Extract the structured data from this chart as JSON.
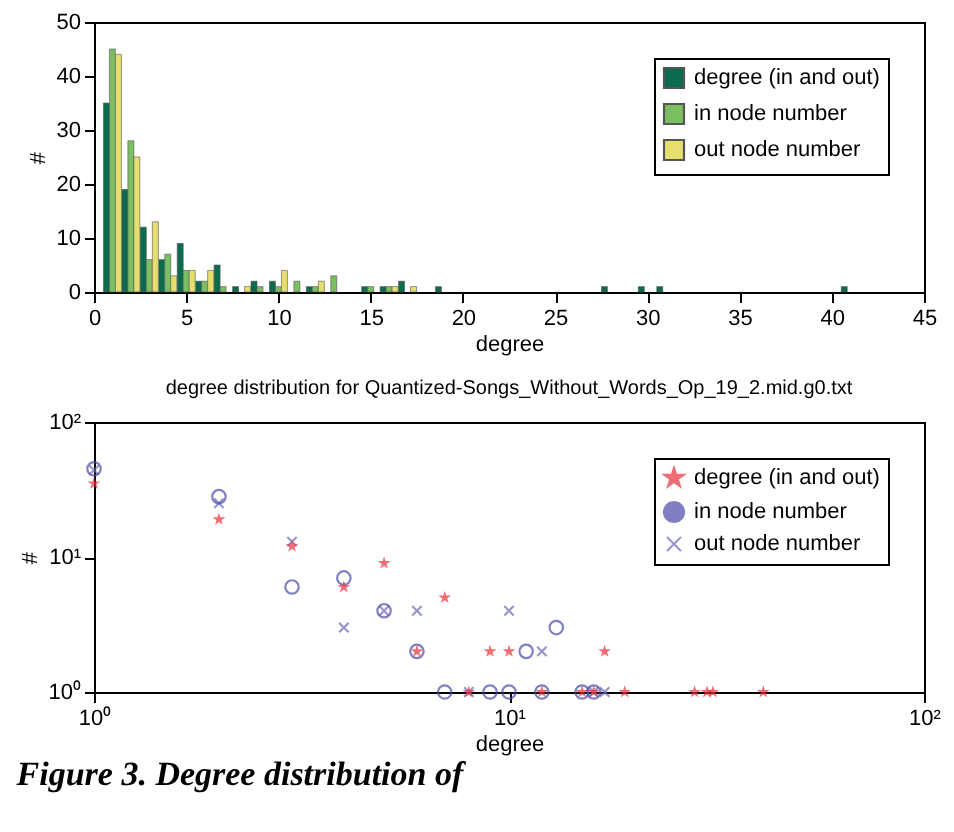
{
  "chart_data": [
    {
      "type": "bar",
      "xlabel": "degree",
      "ylabel": "#",
      "xlim": [
        0,
        45
      ],
      "xticks": [
        0,
        5,
        10,
        15,
        20,
        25,
        30,
        35,
        40,
        45
      ],
      "ylim": [
        0,
        50
      ],
      "yticks": [
        0,
        10,
        20,
        30,
        40,
        50
      ],
      "grid": false,
      "legend": "top right",
      "series": [
        {
          "name": "degree (in and out)",
          "color": "#0b6b4f",
          "x": [
            1,
            2,
            3,
            4,
            5,
            6,
            7,
            8,
            9,
            10,
            12,
            15,
            16,
            17,
            19,
            28,
            30,
            31,
            41
          ],
          "values": [
            35,
            19,
            12,
            6,
            9,
            2,
            5,
            1,
            2,
            2,
            1,
            1,
            1,
            2,
            1,
            1,
            1,
            1,
            1
          ]
        },
        {
          "name": "in node number",
          "color": "#7cbf63",
          "x": [
            1,
            2,
            3,
            4,
            5,
            6,
            7,
            9,
            10,
            11,
            12,
            13,
            15,
            16
          ],
          "values": [
            45,
            28,
            6,
            7,
            4,
            2,
            1,
            1,
            1,
            2,
            1,
            3,
            1,
            1
          ]
        },
        {
          "name": "out node number",
          "color": "#e6df6e",
          "x": [
            1,
            2,
            3,
            4,
            5,
            6,
            8,
            10,
            12,
            16,
            17
          ],
          "values": [
            44,
            25,
            13,
            3,
            4,
            4,
            1,
            4,
            2,
            1,
            1
          ]
        }
      ]
    },
    {
      "type": "scatter",
      "title": "degree distribution for Quantized-Songs_Without_Words_Op_19_2.mid.g0.txt",
      "xlabel": "degree",
      "ylabel": "#",
      "log": "xy",
      "xlim": [
        1,
        100
      ],
      "ylim": [
        1,
        100
      ],
      "xticks": [
        {
          "value": 1,
          "label": "10⁰"
        },
        {
          "value": 10,
          "label": "10¹"
        },
        {
          "value": 100,
          "label": "10²"
        }
      ],
      "yticks": [
        {
          "value": 1,
          "label": "10⁰"
        },
        {
          "value": 10,
          "label": "10¹"
        },
        {
          "value": 100,
          "label": "10²"
        }
      ],
      "grid": false,
      "legend": "top right",
      "annotations": [
        "Figure 3. Degree distribution of"
      ],
      "series": [
        {
          "name": "degree (in and out)",
          "color": "#e8303a",
          "marker": "star",
          "x": [
            1,
            2,
            3,
            4,
            5,
            6,
            7,
            8,
            9,
            10,
            12,
            15,
            16,
            17,
            19,
            28,
            30,
            31,
            41
          ],
          "values": [
            35,
            19,
            12,
            6,
            9,
            2,
            5,
            1,
            2,
            2,
            1,
            1,
            1,
            2,
            1,
            1,
            1,
            1,
            1
          ]
        },
        {
          "name": "in node number",
          "color": "#4a4aa8",
          "marker": "circle",
          "x": [
            1,
            2,
            3,
            4,
            5,
            6,
            7,
            9,
            10,
            11,
            12,
            13,
            15,
            16
          ],
          "values": [
            45,
            28,
            6,
            7,
            4,
            2,
            1,
            1,
            1,
            2,
            1,
            3,
            1,
            1
          ]
        },
        {
          "name": "out node number",
          "color": "#6a6ab8",
          "marker": "cross",
          "x": [
            1,
            2,
            3,
            4,
            5,
            6,
            8,
            10,
            12,
            16,
            17
          ],
          "values": [
            44,
            25,
            13,
            3,
            4,
            4,
            1,
            4,
            2,
            1,
            1
          ]
        }
      ]
    }
  ]
}
